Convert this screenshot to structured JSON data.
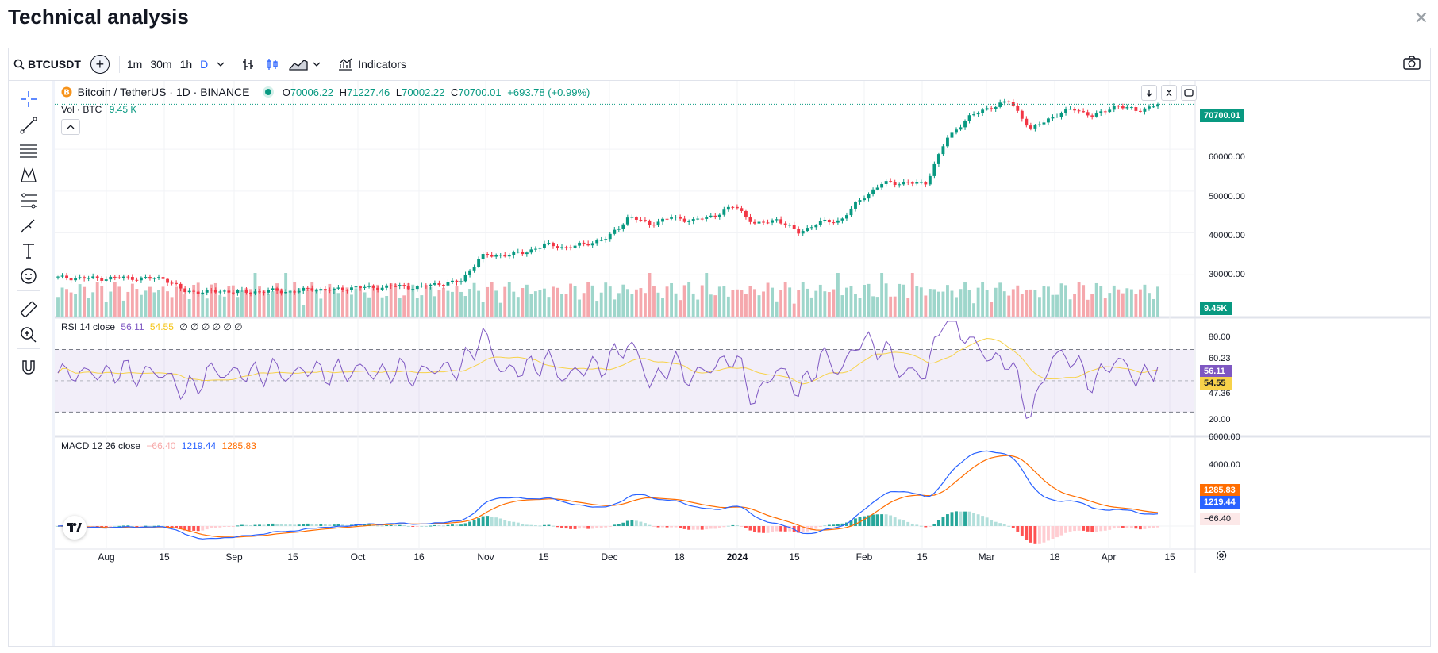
{
  "dialog": {
    "title": "Technical analysis",
    "close_label": "✕"
  },
  "toolbar": {
    "symbol": "BTCUSDT",
    "intervals": [
      "1m",
      "30m",
      "1h",
      "D"
    ],
    "indicators_label": "Indicators"
  },
  "legend": {
    "symbol_title": "Bitcoin / TetherUS · 1D · BINANCE",
    "open_label": "O",
    "open": "70006.22",
    "high_label": "H",
    "high": "71227.46",
    "low_label": "L",
    "low": "70002.22",
    "close_label": "C",
    "close": "70700.01",
    "change": "+693.78 (+0.99%)",
    "vol_label": "Vol · BTC",
    "vol": "9.45 K"
  },
  "rsi_legend": {
    "label": "RSI 14 close",
    "value": "56.11",
    "ma": "54.55",
    "extra": "∅ ∅ ∅ ∅ ∅ ∅"
  },
  "macd_legend": {
    "label": "MACD 12 26 close",
    "hist": "−66.40",
    "macd": "1219.44",
    "signal": "1285.83"
  },
  "price_axis": {
    "labels": [
      "60000.00",
      "50000.00",
      "40000.00",
      "30000.00"
    ],
    "last_price": "70700.01",
    "vol_tag": "9.45K"
  },
  "rsi_axis": {
    "labels": [
      "80.00",
      "60.23",
      "47.36",
      "20.00"
    ],
    "rsi_tag": "56.11",
    "ma_tag": "54.55"
  },
  "macd_axis": {
    "labels": [
      "6000.00",
      "4000.00"
    ],
    "signal_tag": "1285.83",
    "macd_tag": "1219.44",
    "hist_tag": "−66.40"
  },
  "time_axis": {
    "labels": [
      "Aug",
      "15",
      "Sep",
      "15",
      "Oct",
      "16",
      "Nov",
      "15",
      "Dec",
      "18",
      "2024",
      "15",
      "Feb",
      "15",
      "Mar",
      "18",
      "Apr",
      "15"
    ]
  },
  "colors": {
    "up": "#089981",
    "down": "#f23645",
    "rsi": "#7e57c2",
    "rsi_ma": "#f7d24a",
    "macd": "#2962ff",
    "signal": "#ff6d00",
    "accent": "#2962ff"
  },
  "chart_data": {
    "type": "candlestick",
    "title": "Bitcoin / TetherUS · 1D · BINANCE",
    "period": "Jul 2023 – Apr 2024",
    "approx_close_series": [
      29300,
      29200,
      29100,
      29300,
      29100,
      29200,
      26000,
      25900,
      26100,
      25800,
      26200,
      25900,
      26600,
      26300,
      27000,
      26900,
      27300,
      26900,
      27900,
      28200,
      34400,
      34700,
      35200,
      37200,
      36500,
      37400,
      38800,
      43900,
      42100,
      43700,
      42900,
      44100,
      46500,
      41900,
      43300,
      40100,
      42500,
      43000,
      48300,
      51900,
      52000,
      51700,
      62400,
      67500,
      69900,
      71500,
      64700,
      67800,
      69700,
      67800,
      70500,
      69200,
      70700
    ],
    "ylim": [
      20000,
      75000
    ],
    "volume_last": "9.45K",
    "rsi": {
      "period": 14,
      "last": 56.11,
      "ma_last": 54.55,
      "upper_band": 70,
      "lower_band": 30
    },
    "macd": {
      "fast": 12,
      "slow": 26,
      "histogram_last": -66.4,
      "macd_last": 1219.44,
      "signal_last": 1285.83
    }
  }
}
